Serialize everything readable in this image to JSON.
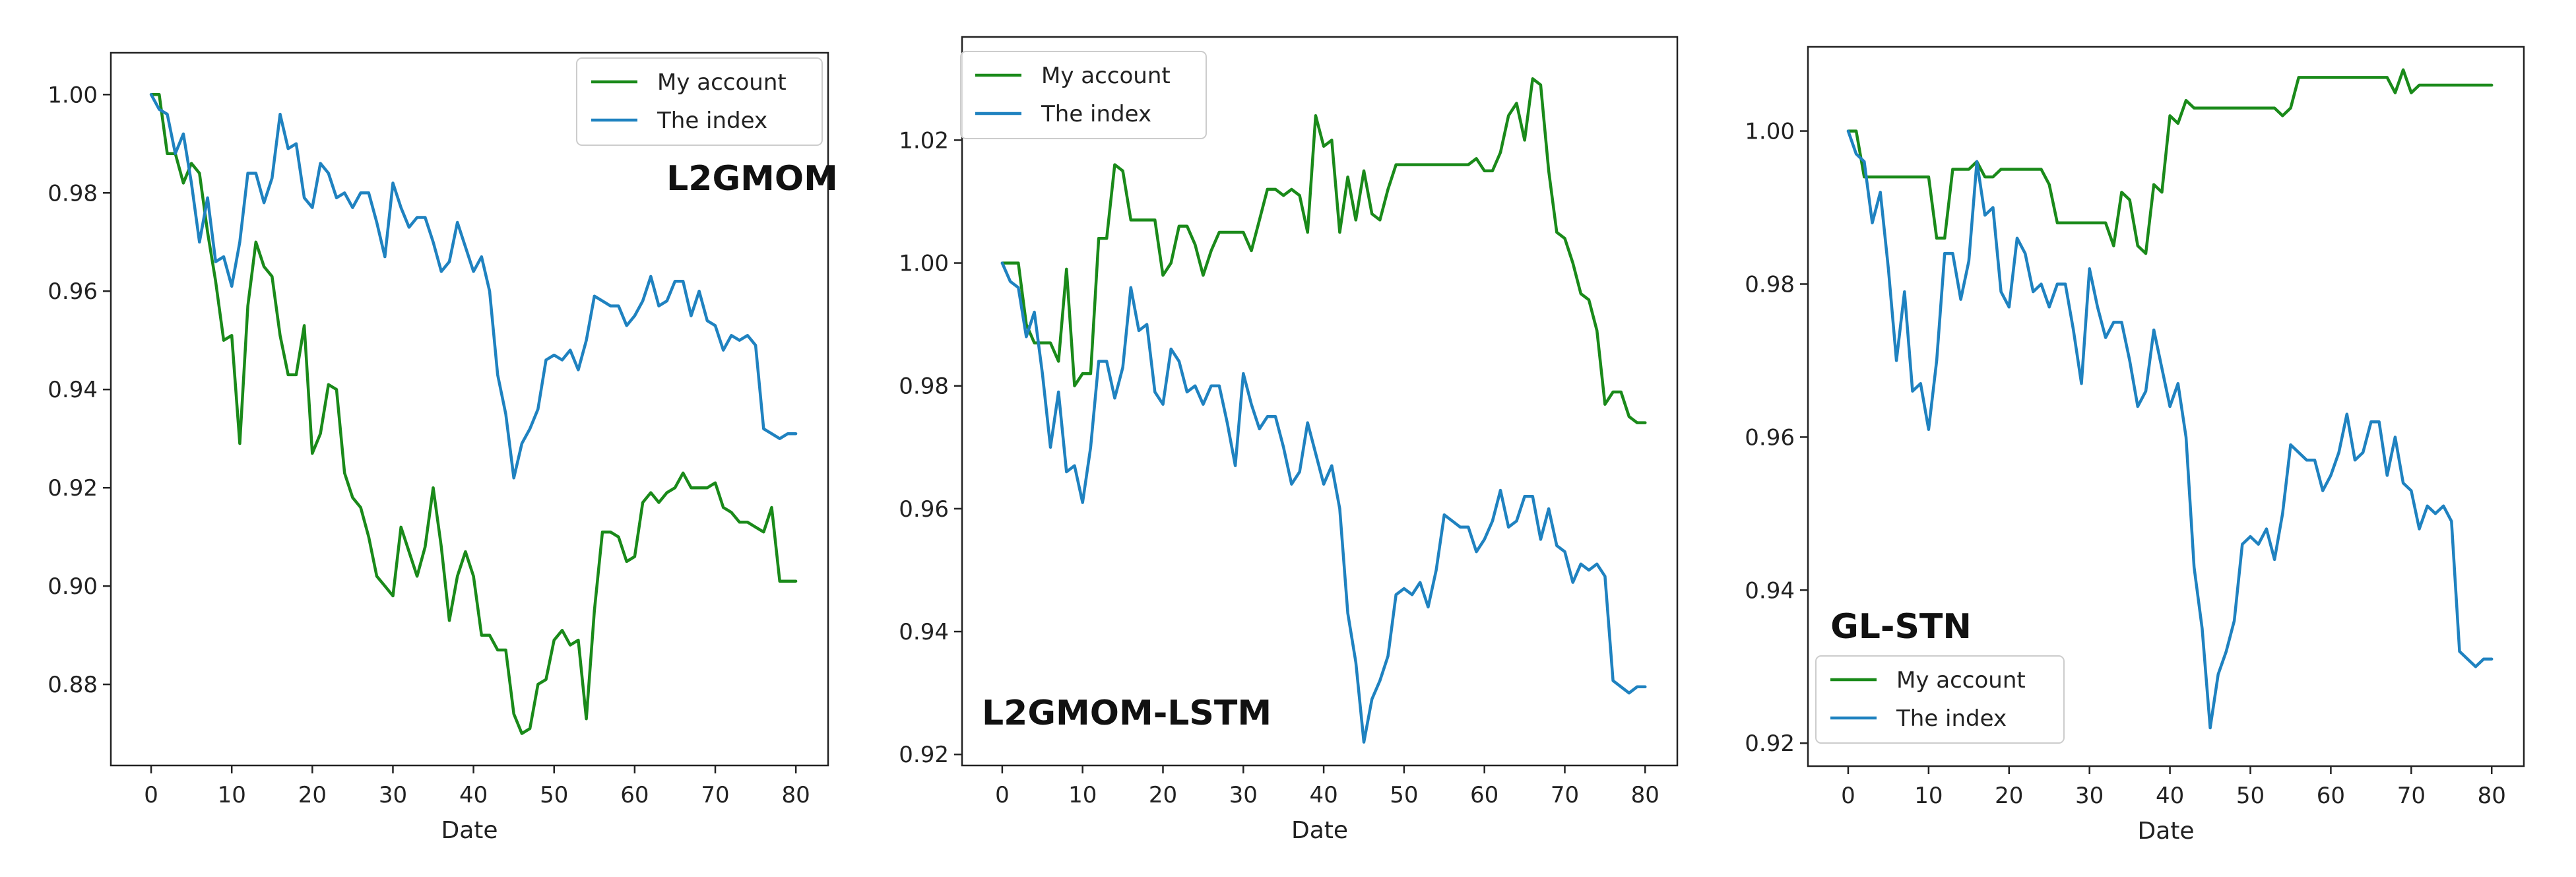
{
  "chart_data": [
    {
      "type": "line",
      "title": "",
      "annotation": "L2GMOM",
      "xlabel": "Date",
      "ylabel": "",
      "xlim": [
        -5,
        84
      ],
      "ylim": [
        0.8635,
        1.0085
      ],
      "xticks": [
        0,
        10,
        20,
        30,
        40,
        50,
        60,
        70,
        80
      ],
      "yticks": [
        0.88,
        0.9,
        0.92,
        0.94,
        0.96,
        0.98,
        1.0
      ],
      "ytick_labels": [
        "0.88",
        "0.90",
        "0.92",
        "0.94",
        "0.96",
        "0.98",
        "1.00"
      ],
      "grid": false,
      "legend_position": "top-right",
      "series": [
        {
          "name": "My account",
          "color": "#1a8a1a",
          "x": [
            0,
            1,
            2,
            3,
            4,
            5,
            6,
            7,
            8,
            9,
            10,
            11,
            12,
            13,
            14,
            15,
            16,
            17,
            18,
            19,
            20,
            21,
            22,
            23,
            24,
            25,
            26,
            27,
            28,
            29,
            30,
            31,
            32,
            33,
            34,
            35,
            36,
            37,
            38,
            39,
            40,
            41,
            42,
            43,
            44,
            45,
            46,
            47,
            48,
            49,
            50,
            51,
            52,
            53,
            54,
            55,
            56,
            57,
            58,
            59,
            60,
            61,
            62,
            63,
            64,
            65,
            66,
            67,
            68,
            69,
            70,
            71,
            72,
            73,
            74,
            75,
            76,
            77,
            78,
            79,
            80
          ],
          "values": [
            1.0,
            1.0,
            0.988,
            0.988,
            0.982,
            0.986,
            0.984,
            0.972,
            0.962,
            0.95,
            0.951,
            0.929,
            0.957,
            0.97,
            0.965,
            0.963,
            0.951,
            0.943,
            0.943,
            0.953,
            0.927,
            0.931,
            0.941,
            0.94,
            0.923,
            0.918,
            0.916,
            0.91,
            0.902,
            0.9,
            0.898,
            0.912,
            0.907,
            0.902,
            0.908,
            0.92,
            0.908,
            0.893,
            0.902,
            0.907,
            0.902,
            0.89,
            0.89,
            0.887,
            0.887,
            0.874,
            0.87,
            0.871,
            0.88,
            0.881,
            0.889,
            0.891,
            0.888,
            0.889,
            0.873,
            0.895,
            0.911,
            0.911,
            0.91,
            0.905,
            0.906,
            0.917,
            0.919,
            0.917,
            0.919,
            0.92,
            0.923,
            0.92,
            0.92,
            0.92,
            0.921,
            0.916,
            0.915,
            0.913,
            0.913,
            0.912,
            0.911,
            0.916,
            0.901,
            0.901,
            0.901
          ]
        },
        {
          "name": "The index",
          "color": "#1f82c0",
          "x": [
            0,
            1,
            2,
            3,
            4,
            5,
            6,
            7,
            8,
            9,
            10,
            11,
            12,
            13,
            14,
            15,
            16,
            17,
            18,
            19,
            20,
            21,
            22,
            23,
            24,
            25,
            26,
            27,
            28,
            29,
            30,
            31,
            32,
            33,
            34,
            35,
            36,
            37,
            38,
            39,
            40,
            41,
            42,
            43,
            44,
            45,
            46,
            47,
            48,
            49,
            50,
            51,
            52,
            53,
            54,
            55,
            56,
            57,
            58,
            59,
            60,
            61,
            62,
            63,
            64,
            65,
            66,
            67,
            68,
            69,
            70,
            71,
            72,
            73,
            74,
            75,
            76,
            77,
            78,
            79,
            80
          ],
          "values": [
            1.0,
            0.997,
            0.996,
            0.988,
            0.992,
            0.982,
            0.97,
            0.979,
            0.966,
            0.967,
            0.961,
            0.97,
            0.984,
            0.984,
            0.978,
            0.983,
            0.996,
            0.989,
            0.99,
            0.979,
            0.977,
            0.986,
            0.984,
            0.979,
            0.98,
            0.977,
            0.98,
            0.98,
            0.974,
            0.967,
            0.982,
            0.977,
            0.973,
            0.975,
            0.975,
            0.97,
            0.964,
            0.966,
            0.974,
            0.969,
            0.964,
            0.967,
            0.96,
            0.943,
            0.935,
            0.922,
            0.929,
            0.932,
            0.936,
            0.946,
            0.947,
            0.946,
            0.948,
            0.944,
            0.95,
            0.959,
            0.958,
            0.957,
            0.957,
            0.953,
            0.955,
            0.958,
            0.963,
            0.957,
            0.958,
            0.962,
            0.962,
            0.955,
            0.96,
            0.954,
            0.953,
            0.948,
            0.951,
            0.95,
            0.951,
            0.949,
            0.932,
            0.931,
            0.93,
            0.931,
            0.931
          ]
        }
      ]
    },
    {
      "type": "line",
      "title": "",
      "annotation": "L2GMOM-LSTM",
      "xlabel": "Date",
      "ylabel": "",
      "xlim": [
        -5,
        84
      ],
      "ylim": [
        0.9182,
        1.0368
      ],
      "xticks": [
        0,
        10,
        20,
        30,
        40,
        50,
        60,
        70,
        80
      ],
      "yticks": [
        0.92,
        0.94,
        0.96,
        0.98,
        1.0,
        1.02
      ],
      "ytick_labels": [
        "0.92",
        "0.94",
        "0.96",
        "0.98",
        "1.00",
        "1.02"
      ],
      "grid": false,
      "legend_position": "top-left",
      "series": [
        {
          "name": "My account",
          "color": "#1a8a1a",
          "x": [
            0,
            1,
            2,
            3,
            4,
            5,
            6,
            7,
            8,
            9,
            10,
            11,
            12,
            13,
            14,
            15,
            16,
            17,
            18,
            19,
            20,
            21,
            22,
            23,
            24,
            25,
            26,
            27,
            28,
            29,
            30,
            31,
            32,
            33,
            34,
            35,
            36,
            37,
            38,
            39,
            40,
            41,
            42,
            43,
            44,
            45,
            46,
            47,
            48,
            49,
            50,
            51,
            52,
            53,
            54,
            55,
            56,
            57,
            58,
            59,
            60,
            61,
            62,
            63,
            64,
            65,
            66,
            67,
            68,
            69,
            70,
            71,
            72,
            73,
            74,
            75,
            76,
            77,
            78,
            79,
            80
          ],
          "values": [
            1.0,
            1.0,
            1.0,
            0.99,
            0.987,
            0.987,
            0.987,
            0.984,
            0.999,
            0.98,
            0.982,
            0.982,
            1.004,
            1.004,
            1.016,
            1.015,
            1.007,
            1.007,
            1.007,
            1.007,
            0.998,
            1.0,
            1.006,
            1.006,
            1.003,
            0.998,
            1.002,
            1.005,
            1.005,
            1.005,
            1.005,
            1.002,
            1.007,
            1.012,
            1.012,
            1.011,
            1.012,
            1.011,
            1.005,
            1.024,
            1.019,
            1.02,
            1.005,
            1.014,
            1.007,
            1.015,
            1.008,
            1.007,
            1.012,
            1.016,
            1.016,
            1.016,
            1.016,
            1.016,
            1.016,
            1.016,
            1.016,
            1.016,
            1.016,
            1.017,
            1.015,
            1.015,
            1.018,
            1.024,
            1.026,
            1.02,
            1.03,
            1.029,
            1.015,
            1.005,
            1.004,
            1.0,
            0.995,
            0.994,
            0.989,
            0.977,
            0.979,
            0.979,
            0.975,
            0.974,
            0.974
          ]
        },
        {
          "name": "The index",
          "color": "#1f82c0",
          "x": [
            0,
            1,
            2,
            3,
            4,
            5,
            6,
            7,
            8,
            9,
            10,
            11,
            12,
            13,
            14,
            15,
            16,
            17,
            18,
            19,
            20,
            21,
            22,
            23,
            24,
            25,
            26,
            27,
            28,
            29,
            30,
            31,
            32,
            33,
            34,
            35,
            36,
            37,
            38,
            39,
            40,
            41,
            42,
            43,
            44,
            45,
            46,
            47,
            48,
            49,
            50,
            51,
            52,
            53,
            54,
            55,
            56,
            57,
            58,
            59,
            60,
            61,
            62,
            63,
            64,
            65,
            66,
            67,
            68,
            69,
            70,
            71,
            72,
            73,
            74,
            75,
            76,
            77,
            78,
            79,
            80
          ],
          "values": [
            1.0,
            0.997,
            0.996,
            0.988,
            0.992,
            0.982,
            0.97,
            0.979,
            0.966,
            0.967,
            0.961,
            0.97,
            0.984,
            0.984,
            0.978,
            0.983,
            0.996,
            0.989,
            0.99,
            0.979,
            0.977,
            0.986,
            0.984,
            0.979,
            0.98,
            0.977,
            0.98,
            0.98,
            0.974,
            0.967,
            0.982,
            0.977,
            0.973,
            0.975,
            0.975,
            0.97,
            0.964,
            0.966,
            0.974,
            0.969,
            0.964,
            0.967,
            0.96,
            0.943,
            0.935,
            0.922,
            0.929,
            0.932,
            0.936,
            0.946,
            0.947,
            0.946,
            0.948,
            0.944,
            0.95,
            0.959,
            0.958,
            0.957,
            0.957,
            0.953,
            0.955,
            0.958,
            0.963,
            0.957,
            0.958,
            0.962,
            0.962,
            0.955,
            0.96,
            0.954,
            0.953,
            0.948,
            0.951,
            0.95,
            0.951,
            0.949,
            0.932,
            0.931,
            0.93,
            0.931,
            0.931
          ]
        }
      ]
    },
    {
      "type": "line",
      "title": "",
      "annotation": "GL-STN",
      "xlabel": "Date",
      "ylabel": "",
      "xlim": [
        -5,
        84
      ],
      "ylim": [
        0.917,
        1.011
      ],
      "xticks": [
        0,
        10,
        20,
        30,
        40,
        50,
        60,
        70,
        80
      ],
      "yticks": [
        0.92,
        0.94,
        0.96,
        0.98,
        1.0
      ],
      "ytick_labels": [
        "0.92",
        "0.94",
        "0.96",
        "0.98",
        "1.00"
      ],
      "grid": false,
      "legend_position": "lower-left",
      "series": [
        {
          "name": "My account",
          "color": "#1a8a1a",
          "x": [
            0,
            1,
            2,
            3,
            4,
            5,
            6,
            7,
            8,
            9,
            10,
            11,
            12,
            13,
            14,
            15,
            16,
            17,
            18,
            19,
            20,
            21,
            22,
            23,
            24,
            25,
            26,
            27,
            28,
            29,
            30,
            31,
            32,
            33,
            34,
            35,
            36,
            37,
            38,
            39,
            40,
            41,
            42,
            43,
            44,
            45,
            46,
            47,
            48,
            49,
            50,
            51,
            52,
            53,
            54,
            55,
            56,
            57,
            58,
            59,
            60,
            61,
            62,
            63,
            64,
            65,
            66,
            67,
            68,
            69,
            70,
            71,
            72,
            73,
            74,
            75,
            76,
            77,
            78,
            79,
            80
          ],
          "values": [
            1.0,
            1.0,
            0.994,
            0.994,
            0.994,
            0.994,
            0.994,
            0.994,
            0.994,
            0.994,
            0.994,
            0.986,
            0.986,
            0.995,
            0.995,
            0.995,
            0.996,
            0.994,
            0.994,
            0.995,
            0.995,
            0.995,
            0.995,
            0.995,
            0.995,
            0.993,
            0.988,
            0.988,
            0.988,
            0.988,
            0.988,
            0.988,
            0.988,
            0.985,
            0.992,
            0.991,
            0.985,
            0.984,
            0.993,
            0.992,
            1.002,
            1.001,
            1.004,
            1.003,
            1.003,
            1.003,
            1.003,
            1.003,
            1.003,
            1.003,
            1.003,
            1.003,
            1.003,
            1.003,
            1.002,
            1.003,
            1.007,
            1.007,
            1.007,
            1.007,
            1.007,
            1.007,
            1.007,
            1.007,
            1.007,
            1.007,
            1.007,
            1.007,
            1.005,
            1.008,
            1.005,
            1.006,
            1.006,
            1.006,
            1.006,
            1.006,
            1.006,
            1.006,
            1.006,
            1.006,
            1.006
          ]
        },
        {
          "name": "The index",
          "color": "#1f82c0",
          "x": [
            0,
            1,
            2,
            3,
            4,
            5,
            6,
            7,
            8,
            9,
            10,
            11,
            12,
            13,
            14,
            15,
            16,
            17,
            18,
            19,
            20,
            21,
            22,
            23,
            24,
            25,
            26,
            27,
            28,
            29,
            30,
            31,
            32,
            33,
            34,
            35,
            36,
            37,
            38,
            39,
            40,
            41,
            42,
            43,
            44,
            45,
            46,
            47,
            48,
            49,
            50,
            51,
            52,
            53,
            54,
            55,
            56,
            57,
            58,
            59,
            60,
            61,
            62,
            63,
            64,
            65,
            66,
            67,
            68,
            69,
            70,
            71,
            72,
            73,
            74,
            75,
            76,
            77,
            78,
            79,
            80
          ],
          "values": [
            1.0,
            0.997,
            0.996,
            0.988,
            0.992,
            0.982,
            0.97,
            0.979,
            0.966,
            0.967,
            0.961,
            0.97,
            0.984,
            0.984,
            0.978,
            0.983,
            0.996,
            0.989,
            0.99,
            0.979,
            0.977,
            0.986,
            0.984,
            0.979,
            0.98,
            0.977,
            0.98,
            0.98,
            0.974,
            0.967,
            0.982,
            0.977,
            0.973,
            0.975,
            0.975,
            0.97,
            0.964,
            0.966,
            0.974,
            0.969,
            0.964,
            0.967,
            0.96,
            0.943,
            0.935,
            0.922,
            0.929,
            0.932,
            0.936,
            0.946,
            0.947,
            0.946,
            0.948,
            0.944,
            0.95,
            0.959,
            0.958,
            0.957,
            0.957,
            0.953,
            0.955,
            0.958,
            0.963,
            0.957,
            0.958,
            0.962,
            0.962,
            0.955,
            0.96,
            0.954,
            0.953,
            0.948,
            0.951,
            0.95,
            0.951,
            0.949,
            0.932,
            0.931,
            0.93,
            0.931,
            0.931
          ]
        }
      ]
    }
  ]
}
